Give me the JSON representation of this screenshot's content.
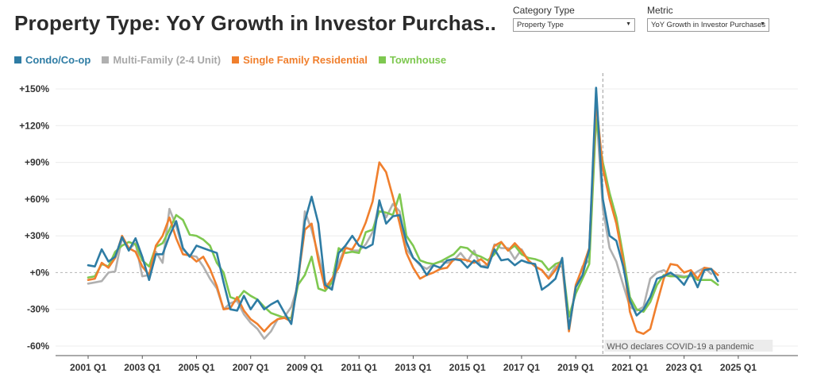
{
  "title": "Property Type: YoY Growth in Investor Purchas..",
  "filters": [
    {
      "label": "Category Type",
      "value": "Property Type"
    },
    {
      "label": "Metric",
      "value": "YoY Growth in Investor Purchases"
    }
  ],
  "colors": {
    "condo": "#2e7ca4",
    "multi": "#b0b0b0",
    "sfr": "#f07f2d",
    "townhouse": "#7ec850"
  },
  "chart_data": {
    "type": "line",
    "x_start": "2001 Q1",
    "x_tick_labels": [
      "2001 Q1",
      "2003 Q1",
      "2005 Q1",
      "2007 Q1",
      "2009 Q1",
      "2011 Q1",
      "2013 Q1",
      "2015 Q1",
      "2017 Q1",
      "2019 Q1",
      "2021 Q1",
      "2023 Q1",
      "2025 Q1"
    ],
    "y_tick_labels": [
      "+150%",
      "+120%",
      "+90%",
      "+60%",
      "+30%",
      "+0%",
      "-30%",
      "-60%"
    ],
    "ylim": [
      -60,
      150
    ],
    "legend_position": "top-left",
    "annotation": {
      "text": "WHO declares COVID-19 a pandemic",
      "x_quarter": "2020 Q1"
    },
    "series": [
      {
        "key": "condo",
        "name": "Condo/Co-op",
        "values": [
          6,
          5,
          19,
          9,
          13,
          29,
          18,
          28,
          13,
          -6,
          15,
          15,
          30,
          42,
          20,
          13,
          22,
          20,
          18,
          16,
          -8,
          -30,
          -31,
          -19,
          -30,
          -22,
          -30,
          -26,
          -23,
          -33,
          -42,
          -5,
          42,
          62,
          40,
          -10,
          -14,
          16,
          22,
          30,
          22,
          20,
          23,
          59,
          40,
          46,
          47,
          25,
          12,
          7,
          -2,
          6,
          4,
          10,
          11,
          10,
          4,
          10,
          5,
          4,
          19,
          10,
          11,
          6,
          10,
          8,
          7,
          -14,
          -10,
          -5,
          12,
          -46,
          -12,
          -2,
          19,
          151,
          60,
          30,
          26,
          5,
          -23,
          -35,
          -30,
          -20,
          -5,
          -3,
          0,
          -4,
          -10,
          0,
          -12,
          2,
          3,
          -7
        ]
      },
      {
        "key": "multi",
        "name": "Multi-Family (2-4 Unit)",
        "values": [
          -9,
          -8,
          -7,
          0,
          1,
          28,
          19,
          24,
          -3,
          -2,
          17,
          8,
          52,
          38,
          19,
          14,
          13,
          5,
          -5,
          -13,
          -30,
          -25,
          -23,
          -34,
          -41,
          -46,
          -54,
          -48,
          -38,
          -36,
          -28,
          -10,
          50,
          35,
          14,
          -8,
          -13,
          8,
          21,
          18,
          18,
          23,
          33,
          57,
          45,
          56,
          50,
          19,
          12,
          6,
          3,
          7,
          9,
          8,
          10,
          16,
          9,
          18,
          5,
          6,
          23,
          20,
          20,
          11,
          19,
          10,
          5,
          2,
          -4,
          5,
          5,
          -46,
          -11,
          5,
          10,
          134,
          52,
          20,
          9,
          -10,
          -28,
          -31,
          -28,
          -5,
          0,
          2,
          -2,
          -2,
          -3,
          -3,
          1,
          4,
          -1
        ]
      },
      {
        "key": "sfr",
        "name": "Single Family Residential",
        "values": [
          -6,
          -5,
          8,
          4,
          12,
          30,
          20,
          17,
          5,
          -2,
          22,
          30,
          45,
          28,
          15,
          14,
          9,
          13,
          3,
          -11,
          -30,
          -29,
          -20,
          -31,
          -38,
          -42,
          -48,
          -42,
          -38,
          -37,
          -40,
          -5,
          35,
          40,
          10,
          -13,
          -5,
          4,
          20,
          19,
          28,
          41,
          58,
          90,
          82,
          62,
          40,
          16,
          4,
          -5,
          -2,
          0,
          3,
          4,
          11,
          11,
          10,
          8,
          11,
          6,
          22,
          25,
          18,
          24,
          18,
          10,
          5,
          2,
          -5,
          2,
          11,
          -48,
          -10,
          4,
          20,
          140,
          85,
          60,
          40,
          10,
          -32,
          -48,
          -50,
          -46,
          -25,
          -5,
          7,
          6,
          0,
          2,
          -5,
          4,
          3,
          -2
        ]
      },
      {
        "key": "townhouse",
        "name": "Townhouse",
        "values": [
          -4,
          -3,
          7,
          5,
          17,
          22,
          25,
          23,
          10,
          5,
          21,
          24,
          35,
          47,
          43,
          31,
          30,
          27,
          22,
          8,
          0,
          -20,
          -22,
          -15,
          -19,
          -22,
          -28,
          -33,
          -35,
          -37,
          -37,
          -10,
          -2,
          13,
          -13,
          -15,
          -8,
          20,
          16,
          17,
          16,
          33,
          35,
          50,
          49,
          47,
          64,
          30,
          22,
          10,
          8,
          7,
          9,
          12,
          15,
          21,
          20,
          15,
          13,
          10,
          15,
          25,
          18,
          22,
          15,
          12,
          11,
          9,
          2,
          7,
          9,
          -36,
          -17,
          -5,
          7,
          125,
          90,
          65,
          45,
          14,
          -20,
          -30,
          -32,
          -24,
          -10,
          -2,
          -3,
          -3,
          -4,
          -2,
          -6,
          -6,
          -6,
          -10
        ]
      }
    ]
  }
}
